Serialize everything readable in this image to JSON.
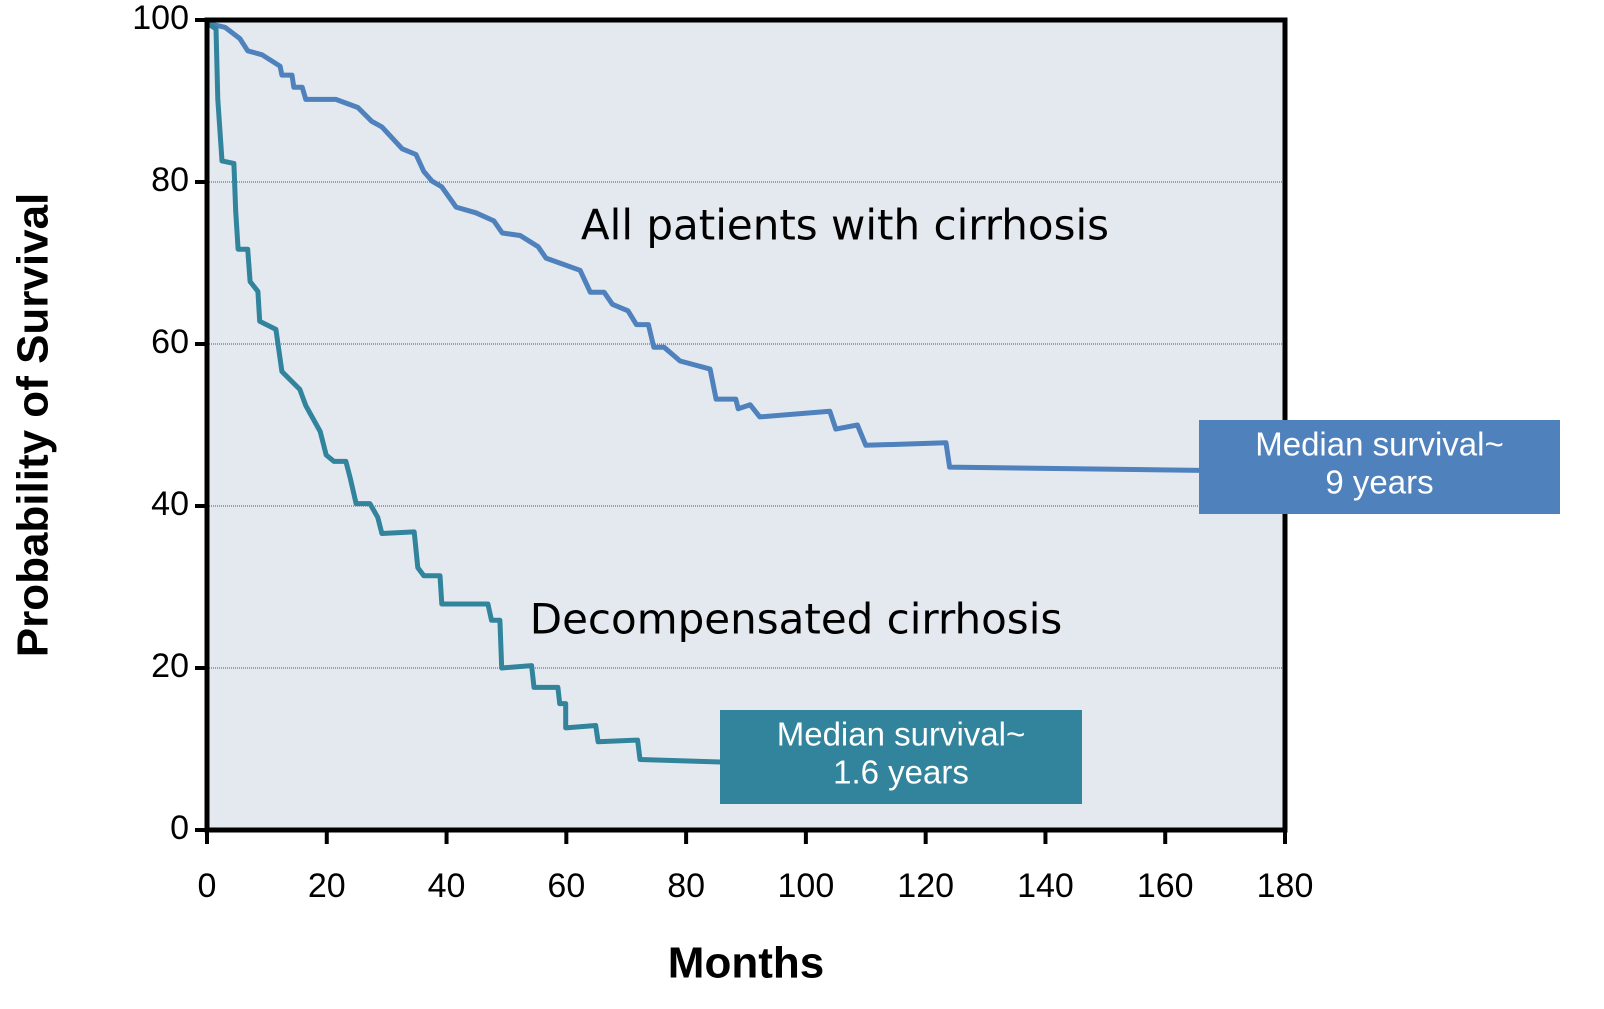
{
  "chart_data": {
    "type": "line",
    "x_label": "Months",
    "y_label": "Probability of Survival",
    "xlim": [
      0,
      180
    ],
    "xticks": [
      0,
      20,
      40,
      60,
      80,
      100,
      120,
      140,
      160,
      180
    ],
    "ylim": [
      0,
      100
    ],
    "yticks": [
      0,
      20,
      40,
      60,
      80,
      100
    ],
    "grid": true,
    "series": [
      {
        "name": "All patients with cirrhosis",
        "color": "#4f81bd",
        "x": [
          0,
          3,
          5.5,
          6.8,
          9.2,
          12.2,
          12.5,
          14.2,
          14.5,
          15.9,
          16.5,
          21.5,
          25.2,
          27.5,
          29.2,
          32.6,
          34.9,
          36.2,
          37.6,
          39.2,
          41.6,
          44.9,
          47.9,
          49.3,
          52.3,
          55.3,
          56.6,
          62.3,
          64,
          66.3,
          67.7,
          70.3,
          71.7,
          73.7,
          74.6,
          76.3,
          79,
          84,
          85,
          88.3,
          88.7,
          90.7,
          92.3,
          104,
          105,
          108.6,
          110,
          123.4,
          124,
          165.8
        ],
        "values": [
          99.6,
          99.1,
          97.7,
          96.2,
          95.7,
          94.3,
          93.2,
          93.2,
          91.7,
          91.7,
          90.2,
          90.2,
          89.2,
          87.5,
          86.8,
          84.1,
          83.4,
          81.3,
          80.1,
          79.4,
          76.9,
          76.2,
          75.2,
          73.7,
          73.4,
          72.0,
          70.6,
          69.1,
          66.4,
          66.4,
          64.9,
          64.1,
          62.4,
          62.4,
          59.6,
          59.6,
          57.9,
          56.9,
          53.2,
          53.2,
          52.0,
          52.5,
          51.0,
          51.7,
          49.5,
          50.0,
          47.5,
          47.8,
          44.8,
          44.4
        ]
      },
      {
        "name": "Decompensated cirrhosis",
        "color": "#31849b",
        "x": [
          0,
          1.5,
          1.8,
          2.5,
          4.5,
          4.8,
          5.2,
          6.8,
          7.2,
          8.5,
          8.8,
          11.5,
          12.5,
          15.5,
          16.5,
          18.9,
          19.9,
          21.2,
          23.2,
          23.9,
          24.9,
          27.2,
          28.5,
          29.2,
          34.6,
          35.2,
          36.2,
          38.9,
          39.2,
          46.9,
          47.5,
          48.9,
          49.2,
          54.2,
          54.6,
          58.6,
          58.9,
          59.9,
          59.9,
          64.9,
          65.3,
          71.9,
          72.3,
          85.7
        ],
        "values": [
          99.6,
          98.9,
          90.2,
          82.6,
          82.3,
          76.4,
          71.7,
          71.7,
          67.7,
          66.5,
          62.8,
          61.8,
          56.6,
          54.4,
          52.4,
          49.2,
          46.3,
          45.5,
          45.5,
          43.5,
          40.3,
          40.3,
          38.6,
          36.6,
          36.8,
          32.4,
          31.4,
          31.4,
          27.9,
          27.9,
          25.9,
          25.9,
          20.0,
          20.3,
          17.6,
          17.6,
          15.6,
          15.6,
          12.6,
          12.9,
          10.9,
          11.1,
          8.7,
          8.4
        ]
      }
    ],
    "callouts": [
      {
        "lines": [
          "Median survival~",
          "9 years"
        ],
        "color": "#4f81bd"
      },
      {
        "lines": [
          "Median survival~",
          "1.6 years"
        ],
        "color": "#31849b"
      }
    ]
  }
}
